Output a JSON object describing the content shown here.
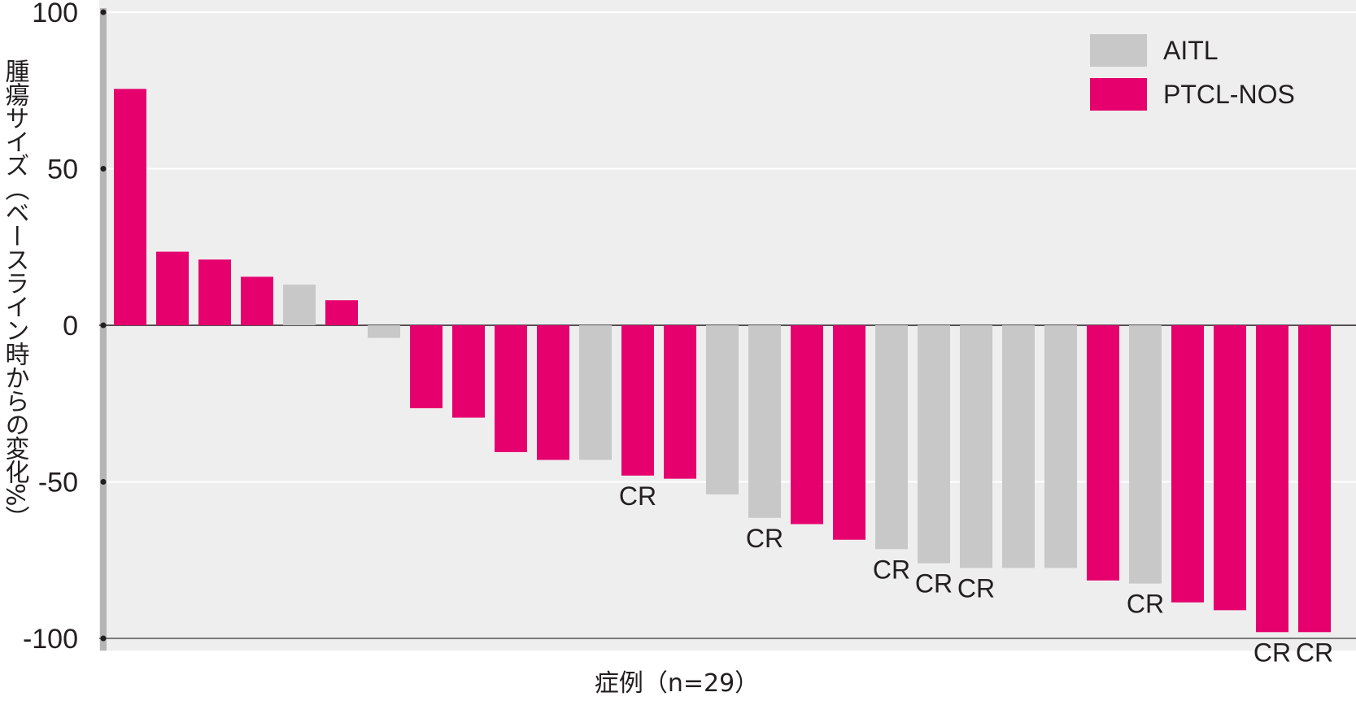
{
  "chart_data": {
    "type": "bar",
    "xlabel": "症例（n=29）",
    "ylabel": "腫瘍サイズ（ベースライン時からの変化%）",
    "ylim": [
      -100,
      100
    ],
    "yticks": [
      100,
      50,
      0,
      -50,
      -100
    ],
    "ytick_labels": [
      "100",
      "50",
      "0",
      "-50",
      "-100"
    ],
    "grid": true,
    "legend_position": "top-right",
    "colors": {
      "AITL": "#c8c8c8",
      "PTCL-NOS": "#e5006e"
    },
    "series": [
      {
        "name": "AITL"
      },
      {
        "name": "PTCL-NOS"
      }
    ],
    "cases": [
      {
        "value": 75.5,
        "group": "PTCL-NOS",
        "label": ""
      },
      {
        "value": 23.5,
        "group": "PTCL-NOS",
        "label": ""
      },
      {
        "value": 21,
        "group": "PTCL-NOS",
        "label": ""
      },
      {
        "value": 15.5,
        "group": "PTCL-NOS",
        "label": ""
      },
      {
        "value": 13,
        "group": "AITL",
        "label": ""
      },
      {
        "value": 8,
        "group": "PTCL-NOS",
        "label": ""
      },
      {
        "value": -4,
        "group": "AITL",
        "label": ""
      },
      {
        "value": -26.5,
        "group": "PTCL-NOS",
        "label": ""
      },
      {
        "value": -29.5,
        "group": "PTCL-NOS",
        "label": ""
      },
      {
        "value": -40.5,
        "group": "PTCL-NOS",
        "label": ""
      },
      {
        "value": -43,
        "group": "PTCL-NOS",
        "label": ""
      },
      {
        "value": -43,
        "group": "AITL",
        "label": ""
      },
      {
        "value": -48,
        "group": "PTCL-NOS",
        "label": "CR"
      },
      {
        "value": -49,
        "group": "PTCL-NOS",
        "label": ""
      },
      {
        "value": -54,
        "group": "AITL",
        "label": ""
      },
      {
        "value": -61.5,
        "group": "AITL",
        "label": "CR"
      },
      {
        "value": -63.5,
        "group": "PTCL-NOS",
        "label": ""
      },
      {
        "value": -68.5,
        "group": "PTCL-NOS",
        "label": ""
      },
      {
        "value": -71.5,
        "group": "AITL",
        "label": "CR"
      },
      {
        "value": -76,
        "group": "AITL",
        "label": "CR"
      },
      {
        "value": -77.5,
        "group": "AITL",
        "label": "CR"
      },
      {
        "value": -77.5,
        "group": "AITL",
        "label": ""
      },
      {
        "value": -77.5,
        "group": "AITL",
        "label": ""
      },
      {
        "value": -81.5,
        "group": "PTCL-NOS",
        "label": ""
      },
      {
        "value": -82.5,
        "group": "AITL",
        "label": "CR"
      },
      {
        "value": -88.5,
        "group": "PTCL-NOS",
        "label": ""
      },
      {
        "value": -91,
        "group": "PTCL-NOS",
        "label": ""
      },
      {
        "value": -98,
        "group": "PTCL-NOS",
        "label": "CR"
      },
      {
        "value": -98,
        "group": "PTCL-NOS",
        "label": "CR"
      }
    ]
  }
}
